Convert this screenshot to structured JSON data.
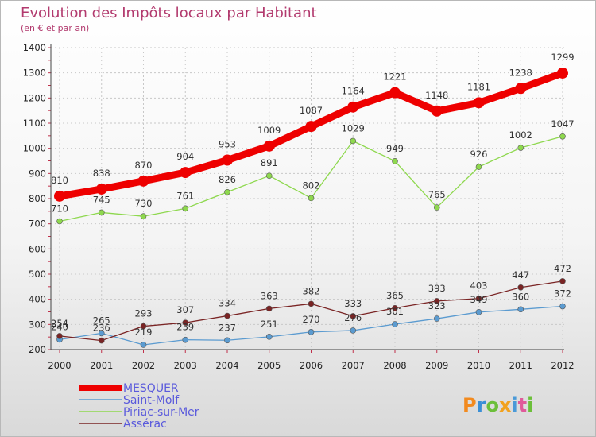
{
  "chart_data": {
    "type": "line",
    "title": "Evolution des Impôts locaux par Habitant",
    "subtitle": "(en € et par an)",
    "x": [
      "2000",
      "2001",
      "2002",
      "2003",
      "2004",
      "2005",
      "2006",
      "2007",
      "2008",
      "2009",
      "2010",
      "2011",
      "2012"
    ],
    "ylim": [
      200,
      1400
    ],
    "yticks": [
      200,
      300,
      400,
      500,
      600,
      700,
      800,
      900,
      1000,
      1100,
      1200,
      1300,
      1400
    ],
    "grid": true,
    "legend_position": "bottom-left",
    "series": [
      {
        "name": "MESQUER",
        "color": "#ee0000",
        "values": [
          810,
          838,
          870,
          904,
          953,
          1009,
          1087,
          1164,
          1221,
          1148,
          1181,
          1238,
          1299
        ]
      },
      {
        "name": "Saint-Molf",
        "color": "#5b9bd0",
        "values": [
          240,
          265,
          219,
          239,
          237,
          251,
          270,
          276,
          301,
          323,
          349,
          360,
          372
        ]
      },
      {
        "name": "Piriac-sur-Mer",
        "color": "#8ed84e",
        "values": [
          710,
          745,
          730,
          761,
          826,
          891,
          802,
          1029,
          949,
          765,
          926,
          1002,
          1047
        ]
      },
      {
        "name": "Assérac",
        "color": "#7a2424",
        "values": [
          254,
          236,
          293,
          307,
          334,
          363,
          382,
          333,
          365,
          393,
          403,
          447,
          472
        ]
      }
    ]
  },
  "branding": {
    "logo_text": "Proxiti"
  }
}
